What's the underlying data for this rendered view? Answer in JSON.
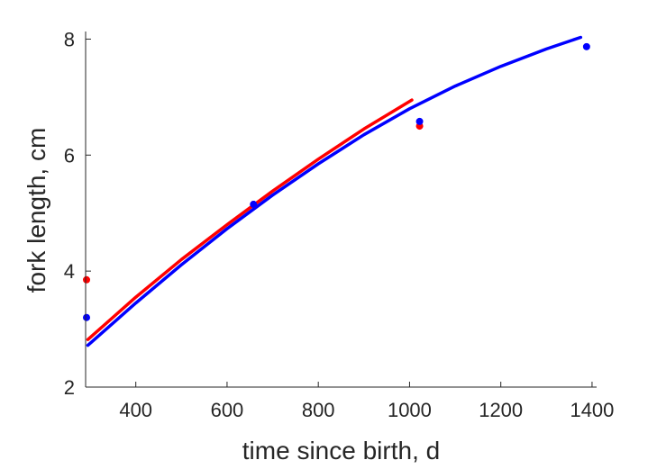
{
  "chart_data": {
    "type": "line",
    "title": "",
    "xlabel": "time since birth, d",
    "ylabel": "fork length, cm",
    "xlim": [
      290,
      1410
    ],
    "ylim": [
      2,
      8.1
    ],
    "xticks": [
      400,
      600,
      800,
      1000,
      1200,
      1400
    ],
    "yticks": [
      2,
      4,
      6,
      8
    ],
    "grid": false,
    "box": "left-bottom",
    "series": [
      {
        "color": "#ff0000",
        "kind": "line",
        "x": [
          295,
          400,
          500,
          600,
          700,
          800,
          900,
          1005
        ],
        "y": [
          2.82,
          3.55,
          4.2,
          4.8,
          5.38,
          5.93,
          6.45,
          6.95
        ]
      },
      {
        "color": "#0000ff",
        "kind": "line",
        "x": [
          295,
          400,
          500,
          600,
          700,
          800,
          900,
          1000,
          1100,
          1200,
          1300,
          1375
        ],
        "y": [
          2.72,
          3.45,
          4.11,
          4.73,
          5.31,
          5.85,
          6.35,
          6.8,
          7.19,
          7.53,
          7.83,
          8.03
        ]
      },
      {
        "color": "#ff0000",
        "kind": "scatter",
        "x": [
          292,
          658,
          1022
        ],
        "y": [
          3.85,
          5.15,
          6.5
        ]
      },
      {
        "color": "#0000ff",
        "kind": "scatter",
        "x": [
          292,
          658,
          1022,
          1388
        ],
        "y": [
          3.2,
          5.15,
          6.58,
          7.87
        ]
      }
    ]
  }
}
